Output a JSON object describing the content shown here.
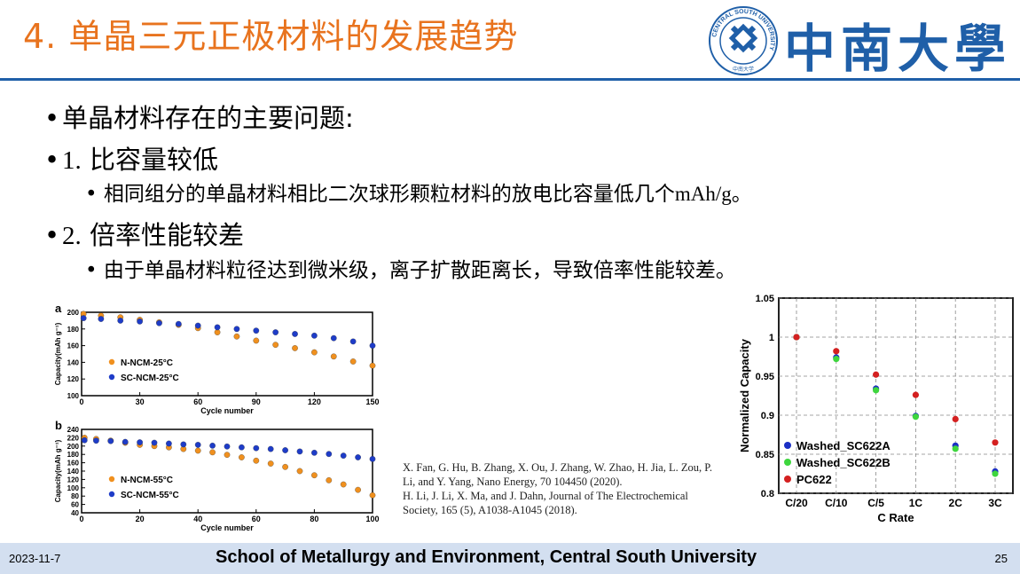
{
  "slide": {
    "title": "4. 单晶三元正极材料的发展趋势",
    "university_name": "中南大學",
    "logo_ring_text": "CENTRAL SOUTH UNIVERSITY",
    "logo_sub_text": "中南大学"
  },
  "bullets": {
    "b1": "单晶材料存在的主要问题:",
    "b2_num": "1.",
    "b2_text": " 比容量较低",
    "b2_sub_text": "相同组分的单晶材料相比二次球形颗粒材料的放电比容量低几个",
    "b2_sub_unit": "mAh/g",
    "b2_sub_end": "。",
    "b3_num": "2.",
    "b3_text": " 倍率性能较差",
    "b3_sub": "由于单晶材料粒径达到微米级，离子扩散距离长，导致倍率性能较差。",
    "bullet_glyph": "•"
  },
  "refs": {
    "r1": "X. Fan, G. Hu, B. Zhang, X. Ou, J. Zhang, W. Zhao, H. Jia, L. Zou, P. Li, and Y. Yang, Nano Energy, 70 104450 (2020).",
    "r2": "H. Li, J. Li, X. Ma, and J. Dahn, Journal of The Electrochemical Society, 165 (5), A1038-A1045 (2018)."
  },
  "footer": {
    "date": "2023-11-7",
    "school": "School of Metallurgy and Environment, Central South University",
    "page": "25"
  },
  "chart_data": [
    {
      "type": "scatter",
      "panel_label": "a",
      "xlabel": "Cycle number",
      "ylabel": "Capacity(mAh g⁻¹)",
      "xlim": [
        0,
        150
      ],
      "ylim": [
        100,
        200
      ],
      "xticks": [
        0,
        30,
        60,
        90,
        120,
        150
      ],
      "yticks": [
        100,
        120,
        140,
        160,
        180,
        200
      ],
      "legend_position": "left-center",
      "series": [
        {
          "name": "N-NCM-25°C",
          "color": "#f0901e",
          "x": [
            1,
            10,
            20,
            30,
            40,
            50,
            60,
            70,
            80,
            90,
            100,
            110,
            120,
            130,
            140,
            150
          ],
          "y": [
            198,
            196,
            194,
            191,
            188,
            185,
            181,
            176,
            171,
            166,
            161,
            157,
            152,
            147,
            141,
            136
          ]
        },
        {
          "name": "SC-NCM-25°C",
          "color": "#1e3cc8",
          "x": [
            1,
            10,
            20,
            30,
            40,
            50,
            60,
            70,
            80,
            90,
            100,
            110,
            120,
            130,
            140,
            150
          ],
          "y": [
            193,
            192,
            190,
            189,
            187,
            186,
            184,
            182,
            180,
            178,
            176,
            174,
            172,
            169,
            165,
            160
          ]
        }
      ]
    },
    {
      "type": "scatter",
      "panel_label": "b",
      "xlabel": "Cycle number",
      "ylabel": "Capacity(mAh g⁻¹)",
      "xlim": [
        0,
        100
      ],
      "ylim": [
        40,
        240
      ],
      "xticks": [
        0,
        20,
        40,
        60,
        80,
        100
      ],
      "yticks": [
        40,
        60,
        80,
        100,
        120,
        140,
        160,
        180,
        200,
        220,
        240
      ],
      "legend_position": "left-center",
      "series": [
        {
          "name": "N-NCM-55°C",
          "color": "#f0901e",
          "x": [
            1,
            5,
            10,
            15,
            20,
            25,
            30,
            35,
            40,
            45,
            50,
            55,
            60,
            65,
            70,
            75,
            80,
            85,
            90,
            95,
            100
          ],
          "y": [
            220,
            217,
            213,
            208,
            203,
            200,
            197,
            193,
            189,
            185,
            179,
            173,
            165,
            158,
            150,
            140,
            130,
            118,
            108,
            95,
            82
          ]
        },
        {
          "name": "SC-NCM-55°C",
          "color": "#1e3cc8",
          "x": [
            1,
            5,
            10,
            15,
            20,
            25,
            30,
            35,
            40,
            45,
            50,
            55,
            60,
            65,
            70,
            75,
            80,
            85,
            90,
            95,
            100
          ],
          "y": [
            214,
            213,
            212,
            210,
            209,
            208,
            206,
            204,
            203,
            201,
            199,
            197,
            195,
            193,
            190,
            187,
            184,
            181,
            177,
            173,
            169
          ]
        }
      ]
    },
    {
      "type": "scatter",
      "xlabel": "C Rate",
      "ylabel": "Normalized Capacity",
      "categories": [
        "C/20",
        "C/10",
        "C/5",
        "1C",
        "2C",
        "3C"
      ],
      "ylim": [
        0.8,
        1.05
      ],
      "yticks": [
        "0.8",
        "0.85",
        "0.9",
        "0.95",
        "1",
        "1.05"
      ],
      "grid": true,
      "legend_position": "bottom-left",
      "series": [
        {
          "name": "Washed_SC622A",
          "color": "#1b2fc4",
          "values": [
            1.0,
            0.974,
            0.934,
            0.899,
            0.861,
            0.828
          ]
        },
        {
          "name": "Washed_SC622B",
          "color": "#3ed63e",
          "values": [
            1.0,
            0.972,
            0.932,
            0.898,
            0.857,
            0.825
          ]
        },
        {
          "name": "PC622",
          "color": "#d42020",
          "values": [
            1.0,
            0.982,
            0.952,
            0.926,
            0.895,
            0.865
          ]
        }
      ]
    }
  ]
}
